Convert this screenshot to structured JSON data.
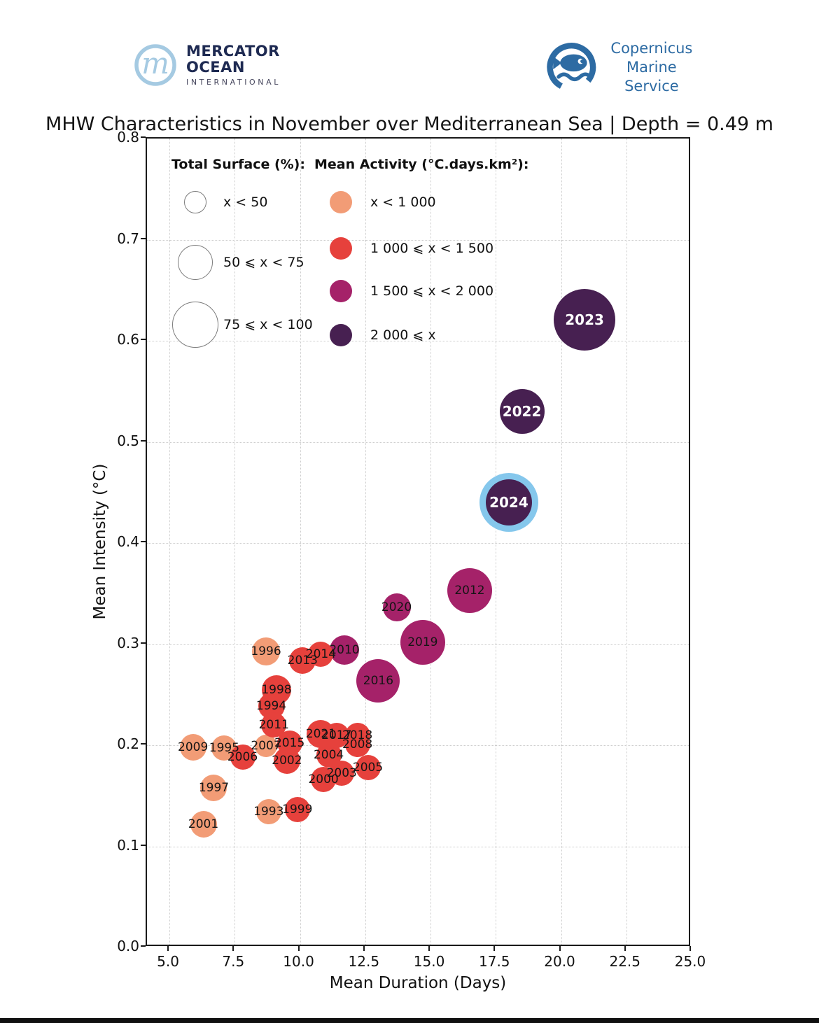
{
  "header": {
    "mercator": {
      "line1": "MERCATOR",
      "line2": "OCEAN",
      "line3": "INTERNATIONAL"
    },
    "copernicus": {
      "line1": "Copernicus",
      "line2": "Marine Service"
    }
  },
  "title": "MHW Characteristics in November over Mediterranean Sea | Depth = 0.49 m",
  "chart_data": {
    "type": "scatter",
    "subtype": "bubble",
    "title": "MHW Characteristics in November over Mediterranean Sea | Depth = 0.49 m",
    "xlabel": "Mean Duration (Days)",
    "ylabel": "Mean Intensity (°C)",
    "xlim": [
      4.14,
      25.0
    ],
    "ylim": [
      0.0,
      0.8
    ],
    "x_ticks": [
      5.0,
      7.5,
      10.0,
      12.5,
      15.0,
      17.5,
      20.0,
      22.5,
      25.0
    ],
    "y_ticks": [
      0.0,
      0.1,
      0.2,
      0.3,
      0.4,
      0.5,
      0.6,
      0.7,
      0.8
    ],
    "grid": "dotted",
    "size_legend": {
      "title": "Total Surface (%):",
      "items": [
        {
          "label": "x < 50",
          "radius_px": 16
        },
        {
          "label": "50 ⩽ x < 75",
          "radius_px": 25
        },
        {
          "label": "75 ⩽ x < 100",
          "radius_px": 33
        }
      ]
    },
    "color_legend": {
      "title": "Mean Activity (°C.days.km²):",
      "items": [
        {
          "label": "x < 1 000",
          "color": "#f29c76"
        },
        {
          "label": "1 000 ⩽ x < 1 500",
          "color": "#e6413c"
        },
        {
          "label": "1 500 ⩽ x < 2 000",
          "color": "#a52269"
        },
        {
          "label": "2 000 ⩽ x",
          "color": "#472051"
        }
      ]
    },
    "highlight": {
      "year": 2024,
      "ring_color": "#85c7ec"
    },
    "points": [
      {
        "year": 1993,
        "x": 8.8,
        "y": 0.134,
        "r": 18,
        "activity_class": 0,
        "surface_class": "x < 50"
      },
      {
        "year": 1994,
        "x": 8.9,
        "y": 0.239,
        "r": 19,
        "activity_class": 1,
        "surface_class": "x < 50"
      },
      {
        "year": 1995,
        "x": 7.1,
        "y": 0.197,
        "r": 18,
        "activity_class": 0,
        "surface_class": "x < 50"
      },
      {
        "year": 1996,
        "x": 8.7,
        "y": 0.293,
        "r": 20,
        "activity_class": 0,
        "surface_class": "x < 50"
      },
      {
        "year": 1997,
        "x": 6.7,
        "y": 0.158,
        "r": 19,
        "activity_class": 0,
        "surface_class": "x < 50"
      },
      {
        "year": 1998,
        "x": 9.1,
        "y": 0.255,
        "r": 21,
        "activity_class": 1,
        "surface_class": "x < 50"
      },
      {
        "year": 1999,
        "x": 9.9,
        "y": 0.136,
        "r": 18,
        "activity_class": 1,
        "surface_class": "x < 50"
      },
      {
        "year": 2000,
        "x": 10.9,
        "y": 0.166,
        "r": 18,
        "activity_class": 1,
        "surface_class": "x < 50"
      },
      {
        "year": 2001,
        "x": 6.3,
        "y": 0.122,
        "r": 19,
        "activity_class": 0,
        "surface_class": "x < 50"
      },
      {
        "year": 2002,
        "x": 9.5,
        "y": 0.185,
        "r": 19,
        "activity_class": 1,
        "surface_class": "x < 50"
      },
      {
        "year": 2003,
        "x": 11.6,
        "y": 0.172,
        "r": 18,
        "activity_class": 1,
        "surface_class": "x < 50"
      },
      {
        "year": 2004,
        "x": 11.1,
        "y": 0.19,
        "r": 18,
        "activity_class": 1,
        "surface_class": "x < 50"
      },
      {
        "year": 2005,
        "x": 12.6,
        "y": 0.178,
        "r": 18,
        "activity_class": 1,
        "surface_class": "x < 50"
      },
      {
        "year": 2006,
        "x": 7.8,
        "y": 0.188,
        "r": 18,
        "activity_class": 1,
        "surface_class": "x < 50"
      },
      {
        "year": 2007,
        "x": 8.7,
        "y": 0.199,
        "r": 16,
        "activity_class": 0,
        "surface_class": "x < 50"
      },
      {
        "year": 2008,
        "x": 12.2,
        "y": 0.201,
        "r": 18,
        "activity_class": 1,
        "surface_class": "x < 50"
      },
      {
        "year": 2009,
        "x": 5.9,
        "y": 0.198,
        "r": 19,
        "activity_class": 0,
        "surface_class": "x < 50"
      },
      {
        "year": 2010,
        "x": 11.7,
        "y": 0.294,
        "r": 21,
        "activity_class": 2,
        "surface_class": "x < 50"
      },
      {
        "year": 2011,
        "x": 9.0,
        "y": 0.22,
        "r": 18,
        "activity_class": 1,
        "surface_class": "x < 50"
      },
      {
        "year": 2012,
        "x": 16.5,
        "y": 0.353,
        "r": 32,
        "activity_class": 2,
        "surface_class": "50 ⩽ x < 75"
      },
      {
        "year": 2013,
        "x": 10.1,
        "y": 0.284,
        "r": 19,
        "activity_class": 1,
        "surface_class": "x < 50"
      },
      {
        "year": 2014,
        "x": 10.8,
        "y": 0.29,
        "r": 18,
        "activity_class": 1,
        "surface_class": "x < 50"
      },
      {
        "year": 2015,
        "x": 9.6,
        "y": 0.202,
        "r": 18,
        "activity_class": 1,
        "surface_class": "x < 50"
      },
      {
        "year": 2016,
        "x": 13.0,
        "y": 0.264,
        "r": 31,
        "activity_class": 2,
        "surface_class": "50 ⩽ x < 75"
      },
      {
        "year": 2017,
        "x": 11.4,
        "y": 0.21,
        "r": 18,
        "activity_class": 1,
        "surface_class": "x < 50"
      },
      {
        "year": 2018,
        "x": 12.2,
        "y": 0.21,
        "r": 18,
        "activity_class": 1,
        "surface_class": "x < 50"
      },
      {
        "year": 2019,
        "x": 14.7,
        "y": 0.302,
        "r": 32,
        "activity_class": 2,
        "surface_class": "50 ⩽ x < 75"
      },
      {
        "year": 2020,
        "x": 13.7,
        "y": 0.336,
        "r": 20,
        "activity_class": 2,
        "surface_class": "x < 50"
      },
      {
        "year": 2021,
        "x": 10.8,
        "y": 0.211,
        "r": 20,
        "activity_class": 1,
        "surface_class": "x < 50"
      },
      {
        "year": 2022,
        "x": 18.5,
        "y": 0.53,
        "r": 32,
        "activity_class": 3,
        "surface_class": "50 ⩽ x < 75"
      },
      {
        "year": 2023,
        "x": 20.9,
        "y": 0.621,
        "r": 44,
        "activity_class": 3,
        "surface_class": "75 ⩽ x < 100"
      },
      {
        "year": 2024,
        "x": 18.0,
        "y": 0.44,
        "r": 33,
        "activity_class": 3,
        "surface_class": "50 ⩽ x < 75"
      }
    ]
  }
}
